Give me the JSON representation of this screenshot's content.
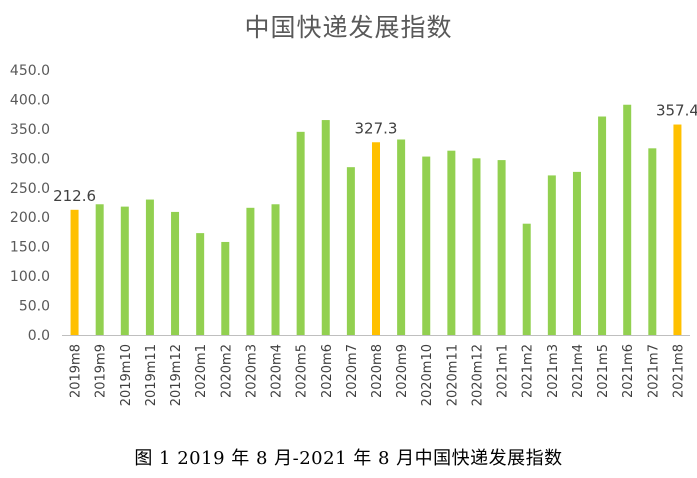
{
  "chart_data": {
    "type": "bar",
    "title": "中国快递发展指数",
    "caption": "图 1 2019 年 8 月-2021 年 8 月中国快递发展指数",
    "xlabel": "",
    "ylabel": "",
    "ylim": [
      0,
      450
    ],
    "yticks": [
      "0.0",
      "50.0",
      "100.0",
      "150.0",
      "200.0",
      "250.0",
      "300.0",
      "350.0",
      "400.0",
      "450.0"
    ],
    "grid": false,
    "categories": [
      "2019m8",
      "2019m9",
      "2019m10",
      "2019m11",
      "2019m12",
      "2020m1",
      "2020m2",
      "2020m3",
      "2020m4",
      "2020m5",
      "2020m6",
      "2020m7",
      "2020m8",
      "2020m9",
      "2020m10",
      "2020m11",
      "2020m12",
      "2021m1",
      "2021m2",
      "2021m3",
      "2021m4",
      "2021m5",
      "2021m6",
      "2021m7",
      "2021m8"
    ],
    "values": [
      212.6,
      222,
      218,
      230,
      209,
      173,
      158,
      216,
      222,
      345,
      365,
      285,
      327.3,
      332,
      303,
      313,
      300,
      297,
      189,
      271,
      277,
      371,
      391,
      317,
      357.4
    ],
    "highlight_categories": [
      "2019m8",
      "2020m8",
      "2021m8"
    ],
    "data_labels": [
      {
        "category": "2019m8",
        "text": "212.6"
      },
      {
        "category": "2020m8",
        "text": "327.3"
      },
      {
        "category": "2021m8",
        "text": "357.4"
      }
    ],
    "colors": {
      "normal": "#92d050",
      "highlight": "#ffc000",
      "axis": "#bfbfbf"
    }
  }
}
